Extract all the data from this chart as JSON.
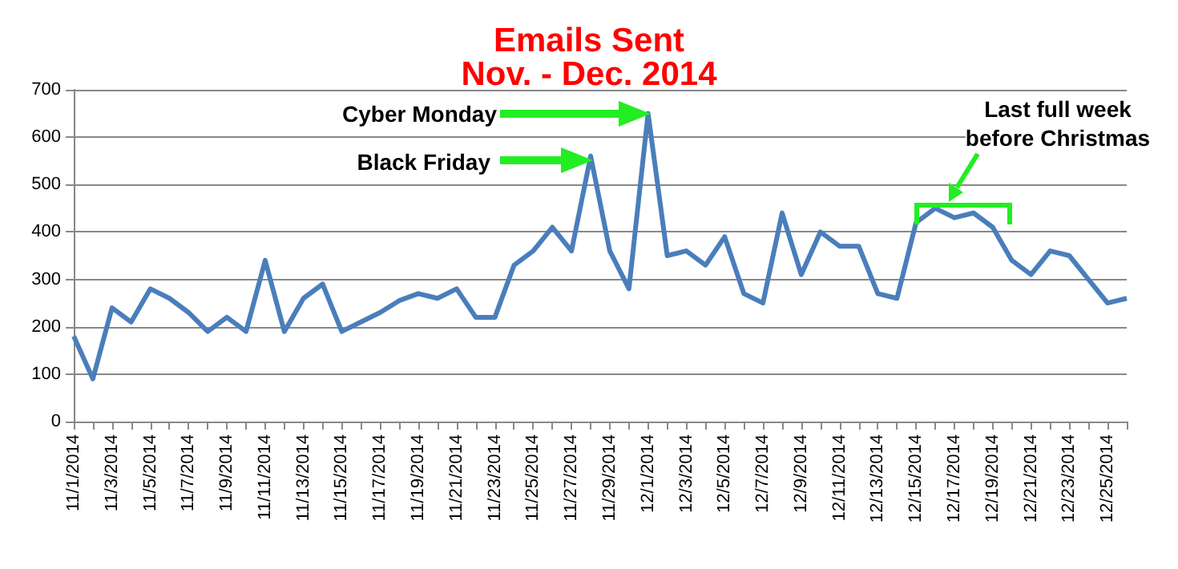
{
  "chart_data": {
    "type": "line",
    "title": "Emails Sent",
    "subtitle": "Nov. - Dec. 2014",
    "categories": [
      "11/1/2014",
      null,
      "11/3/2014",
      null,
      "11/5/2014",
      null,
      "11/7/2014",
      null,
      "11/9/2014",
      null,
      "11/11/2014",
      null,
      "11/13/2014",
      null,
      "11/15/2014",
      null,
      "11/17/2014",
      null,
      "11/19/2014",
      null,
      "11/21/2014",
      null,
      "11/23/2014",
      null,
      "11/25/2014",
      null,
      "11/27/2014",
      null,
      "11/29/2014",
      null,
      "12/1/2014",
      null,
      "12/3/2014",
      null,
      "12/5/2014",
      null,
      "12/7/2014",
      null,
      "12/9/2014",
      null,
      "12/11/2014",
      null,
      "12/13/2014",
      null,
      "12/15/2014",
      null,
      "12/17/2014",
      null,
      "12/19/2014",
      null,
      "12/21/2014",
      null,
      "12/23/2014",
      null,
      "12/25/2014",
      null
    ],
    "series": [
      {
        "color": "#4a7ebb",
        "values": [
          180,
          90,
          240,
          210,
          280,
          260,
          230,
          190,
          220,
          190,
          340,
          190,
          260,
          290,
          190,
          210,
          230,
          255,
          270,
          260,
          280,
          220,
          220,
          330,
          360,
          410,
          360,
          560,
          360,
          280,
          650,
          350,
          360,
          330,
          390,
          270,
          250,
          440,
          310,
          400,
          370,
          370,
          270,
          260,
          420,
          450,
          430,
          440,
          410,
          340,
          310,
          360,
          350,
          300,
          250,
          260
        ]
      }
    ],
    "ylim": [
      0,
      700
    ],
    "yticks": [
      0,
      100,
      200,
      300,
      400,
      500,
      600,
      700
    ],
    "grid": "y",
    "marker": "none",
    "line_style": "solid",
    "annotations": [
      "Cyber Monday",
      "Black Friday",
      "Last full week\nbefore Christmas"
    ]
  }
}
